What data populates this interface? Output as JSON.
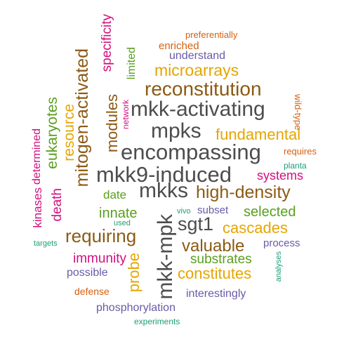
{
  "colors": {
    "dark_gray": "#4d4d4d",
    "brown": "#8c5a14",
    "gold": "#e6a500",
    "green": "#5a9f1e",
    "magenta": "#d40f7d",
    "purple": "#6a5aa8",
    "orange_red": "#d95f0e",
    "teal": "#1b9e77"
  },
  "words": [
    {
      "text": "mkk9-induced",
      "color": "dark_gray"
    },
    {
      "text": "encompassing",
      "color": "dark_gray"
    },
    {
      "text": "mkk-activating",
      "color": "dark_gray"
    },
    {
      "text": "reconstitution",
      "color": "brown"
    },
    {
      "text": "mkks",
      "color": "dark_gray"
    },
    {
      "text": "mkk-mpk",
      "color": "dark_gray"
    },
    {
      "text": "high-density",
      "color": "brown"
    },
    {
      "text": "mpks",
      "color": "dark_gray"
    },
    {
      "text": "mitogen-activated",
      "color": "brown"
    },
    {
      "text": "requiring",
      "color": "brown"
    },
    {
      "text": "sgt1",
      "color": "dark_gray"
    },
    {
      "text": "fundamental",
      "color": "gold"
    },
    {
      "text": "valuable",
      "color": "brown"
    },
    {
      "text": "microarrays",
      "color": "gold"
    },
    {
      "text": "modules",
      "color": "brown"
    },
    {
      "text": "resource",
      "color": "gold"
    },
    {
      "text": "cascades",
      "color": "gold"
    },
    {
      "text": "constitutes",
      "color": "gold"
    },
    {
      "text": "probe",
      "color": "gold"
    },
    {
      "text": "selected",
      "color": "green"
    },
    {
      "text": "systems",
      "color": "magenta"
    },
    {
      "text": "substrates",
      "color": "green"
    },
    {
      "text": "innate",
      "color": "green"
    },
    {
      "text": "immunity",
      "color": "magenta"
    },
    {
      "text": "eukaryotes",
      "color": "green"
    },
    {
      "text": "specificity",
      "color": "magenta"
    },
    {
      "text": "death",
      "color": "magenta"
    },
    {
      "text": "date",
      "color": "green"
    },
    {
      "text": "phosphorylation",
      "color": "purple"
    },
    {
      "text": "kinases",
      "color": "magenta"
    },
    {
      "text": "limited",
      "color": "green"
    },
    {
      "text": "determined",
      "color": "magenta"
    },
    {
      "text": "understand",
      "color": "purple"
    },
    {
      "text": "interestingly",
      "color": "purple"
    },
    {
      "text": "possible",
      "color": "purple"
    },
    {
      "text": "process",
      "color": "purple"
    },
    {
      "text": "enriched",
      "color": "orange_red"
    },
    {
      "text": "subset",
      "color": "purple"
    },
    {
      "text": "preferentially",
      "color": "orange_red"
    },
    {
      "text": "defense",
      "color": "orange_red"
    },
    {
      "text": "requires",
      "color": "orange_red"
    },
    {
      "text": "experiments",
      "color": "teal"
    },
    {
      "text": "network",
      "color": "magenta"
    },
    {
      "text": "wild-type",
      "color": "orange_red"
    },
    {
      "text": "planta",
      "color": "teal"
    },
    {
      "text": "vivo",
      "color": "teal"
    },
    {
      "text": "used",
      "color": "teal"
    },
    {
      "text": "targets",
      "color": "teal"
    },
    {
      "text": "analyses",
      "color": "teal"
    }
  ]
}
